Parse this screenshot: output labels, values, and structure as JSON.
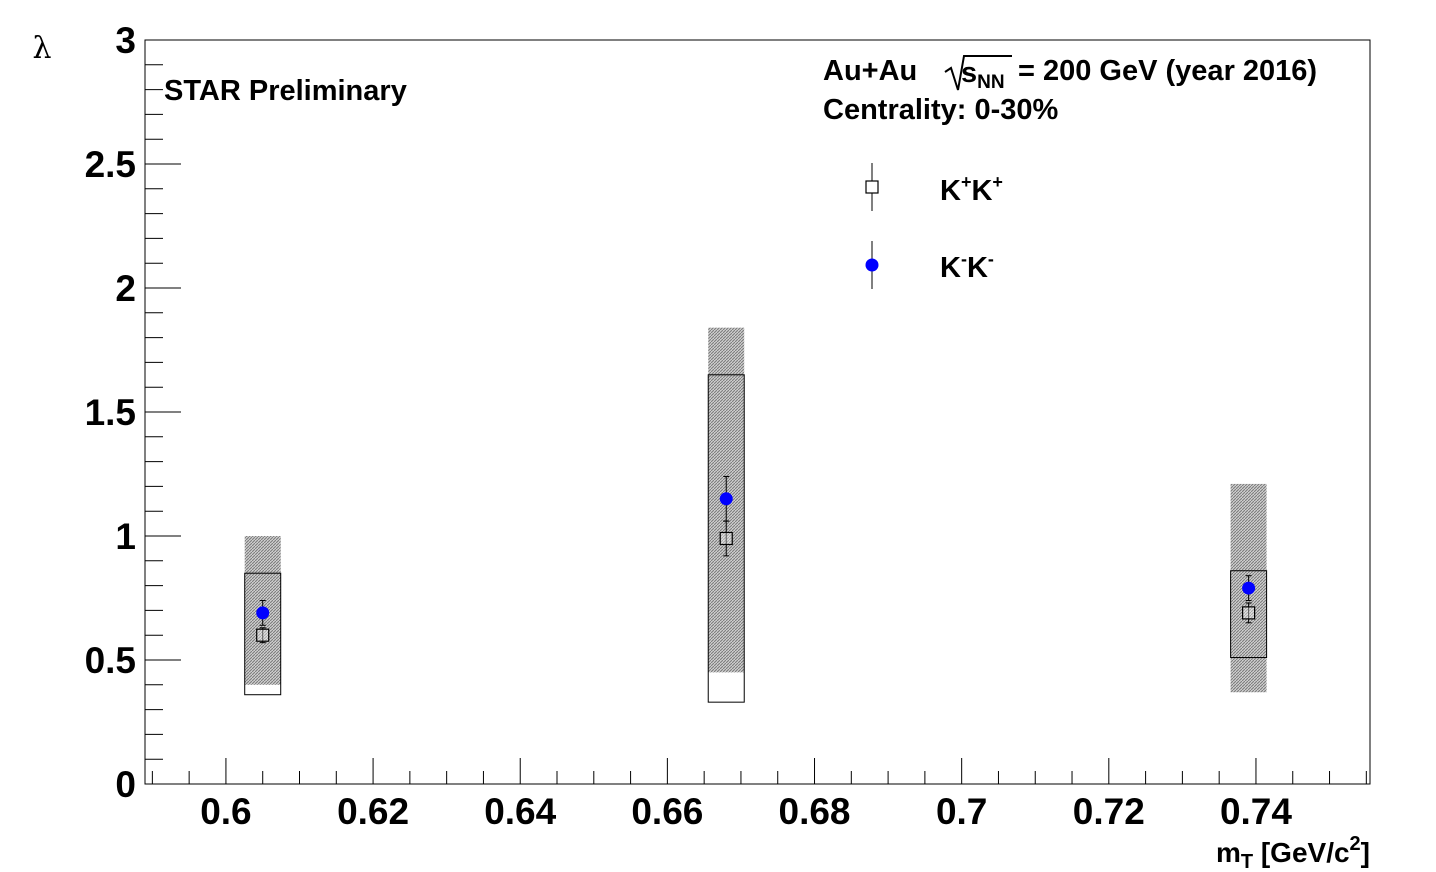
{
  "chart_data": {
    "type": "scatter",
    "title": "",
    "xlabel": "m",
    "xlabel_sub": "T",
    "xlabel_units": " [GeV/c",
    "xlabel_sup": "2",
    "xlabel_close": "]",
    "ylabel": "λ",
    "xlim": [
      0.589,
      0.7555
    ],
    "ylim": [
      0,
      3
    ],
    "x_ticks": [
      "0.6",
      "0.62",
      "0.64",
      "0.66",
      "0.68",
      "0.7",
      "0.72",
      "0.74"
    ],
    "y_ticks": [
      "0",
      "0.5",
      "1",
      "1.5",
      "2",
      "2.5",
      "3"
    ],
    "grid": false,
    "legend_position": "top-right",
    "annotations": {
      "star": "STAR Preliminary",
      "system_a": "Au+Au",
      "system_s": "s",
      "system_sub": "NN",
      "system_b": "= 200 GeV (year 2016)",
      "centrality": "Centrality: 0-30%"
    },
    "series": [
      {
        "name": "K+K+",
        "label_main": "K",
        "label_sup1": "+",
        "label_mid": "K",
        "label_sup2": "+",
        "marker": "open-square",
        "color": "#000000",
        "x": [
          0.605,
          0.668,
          0.739
        ],
        "y": [
          0.6,
          0.99,
          0.69
        ],
        "stat_err": [
          0.03,
          0.07,
          0.04
        ],
        "sys_low": [
          0.36,
          0.33,
          0.51
        ],
        "sys_high": [
          0.85,
          1.65,
          0.86
        ],
        "sys_style": "open-box"
      },
      {
        "name": "K-K-",
        "label_main": "K",
        "label_sup1": "-",
        "label_mid": "K",
        "label_sup2": "-",
        "marker": "filled-circle",
        "color": "#0000ff",
        "x": [
          0.605,
          0.668,
          0.739
        ],
        "y": [
          0.69,
          1.15,
          0.79
        ],
        "stat_err": [
          0.05,
          0.09,
          0.05
        ],
        "sys_low": [
          0.4,
          0.45,
          0.37
        ],
        "sys_high": [
          1.0,
          1.84,
          1.21
        ],
        "sys_style": "hatched-box"
      }
    ],
    "colors": {
      "frame": "#000000",
      "hatch": "#9a9a9a",
      "kminus": "#0000ff"
    }
  }
}
